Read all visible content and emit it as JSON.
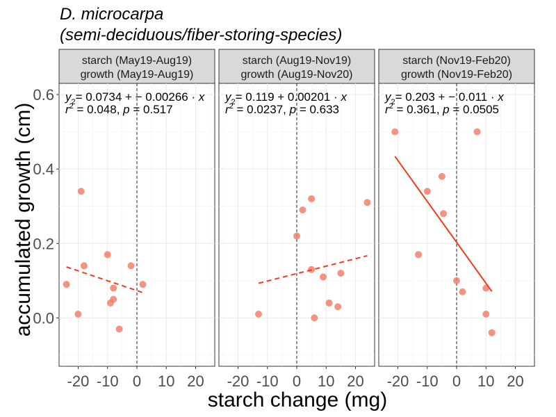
{
  "chart_data": {
    "type": "scatter",
    "title": "D. microcarpa",
    "subtitle": "(semi-deciduous/fiber-storing-species)",
    "xlabel": "starch change (mg)",
    "ylabel": "accumulated growth (cm)",
    "xlim": [
      -26.5,
      26.5
    ],
    "ylim": [
      -0.13,
      0.63
    ],
    "xticks": [
      -20,
      -10,
      0,
      10,
      20
    ],
    "xtick_labels": [
      "-20",
      "-10",
      "0",
      "10",
      "20"
    ],
    "yticks": [
      0.0,
      0.2,
      0.4,
      0.6
    ],
    "ytick_labels": [
      "0.0",
      "0.2",
      "0.4",
      "0.6"
    ],
    "grid": true,
    "vline_x": 0,
    "point_color": "#f07860",
    "line_color": "#f03c1e",
    "panels": [
      {
        "strip": [
          "starch (May19-Aug19)",
          "growth (May19-Aug19)"
        ],
        "equation": "= 0.0734 + − 0.00266 · x",
        "stats": "= 0.048,  p = 0.517",
        "points": [
          [
            -24,
            0.09
          ],
          [
            -20,
            0.01
          ],
          [
            -19,
            0.34
          ],
          [
            -18,
            0.14
          ],
          [
            -10,
            0.17
          ],
          [
            -9,
            0.04
          ],
          [
            -8,
            0.05
          ],
          [
            -8,
            0.08
          ],
          [
            -6,
            -0.03
          ],
          [
            -2,
            0.14
          ],
          [
            2,
            0.09
          ]
        ],
        "fit": {
          "x": [
            -24,
            2
          ],
          "y": [
            0.137,
            0.068
          ]
        },
        "fit_style": "dashed"
      },
      {
        "strip": [
          "starch (Aug19-Nov19)",
          "growth (Aug19-Nov20)"
        ],
        "equation": "= 0.119 + 0.00201 · x",
        "stats": "= 0.0237,  p = 0.633",
        "points": [
          [
            -13,
            0.01
          ],
          [
            0,
            0.22
          ],
          [
            2,
            0.29
          ],
          [
            5,
            0.32
          ],
          [
            5,
            0.13
          ],
          [
            6,
            0.0
          ],
          [
            9,
            0.11
          ],
          [
            11,
            0.04
          ],
          [
            14,
            0.03
          ],
          [
            15,
            0.12
          ],
          [
            24,
            0.31
          ]
        ],
        "fit": {
          "x": [
            -13,
            24
          ],
          "y": [
            0.093,
            0.167
          ]
        },
        "fit_style": "dashed"
      },
      {
        "strip": [
          "starch (Nov19-Feb20)",
          "growth (Nov19-Feb20)"
        ],
        "equation": "= 0.203 + − 0.011 · x",
        "stats": "= 0.361,  p = 0.0505",
        "points": [
          [
            -21,
            0.5
          ],
          [
            -13,
            0.17
          ],
          [
            -10,
            0.34
          ],
          [
            -5,
            0.38
          ],
          [
            -4.5,
            0.28
          ],
          [
            0,
            0.1
          ],
          [
            2,
            0.07
          ],
          [
            7,
            0.5
          ],
          [
            10,
            0.08
          ],
          [
            10,
            0.01
          ],
          [
            12,
            -0.04
          ]
        ],
        "fit": {
          "x": [
            -21,
            12
          ],
          "y": [
            0.434,
            0.071
          ]
        },
        "fit_style": "solid"
      }
    ]
  }
}
